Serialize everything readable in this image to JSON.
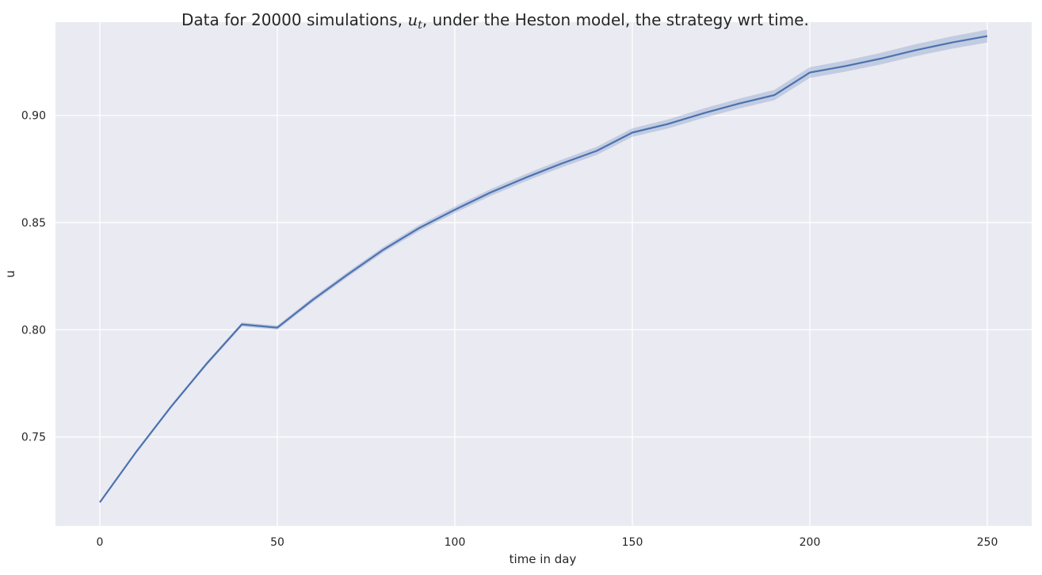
{
  "chart_data": {
    "type": "line",
    "title": {
      "prefix": "Data for 20000 simulations, ",
      "math_base": "u",
      "math_sub": "t",
      "suffix": ", under the Heston model, the strategy wrt time."
    },
    "xlabel": "time in day",
    "ylabel": "u",
    "xlim": [
      -12.5,
      262.5
    ],
    "ylim": [
      0.7085,
      0.9435
    ],
    "xticks": [
      0,
      50,
      100,
      150,
      200,
      250
    ],
    "xtick_labels": [
      "0",
      "50",
      "100",
      "150",
      "200",
      "250"
    ],
    "yticks": [
      0.75,
      0.8,
      0.85,
      0.9
    ],
    "ytick_labels": [
      "0.75",
      "0.80",
      "0.85",
      "0.90"
    ],
    "grid": true,
    "legend": "none",
    "series": [
      {
        "x": [
          0,
          10,
          20,
          30,
          40,
          50,
          60,
          70,
          80,
          90,
          100,
          110,
          120,
          130,
          140,
          150,
          160,
          170,
          180,
          190,
          200,
          210,
          220,
          230,
          240,
          250
        ],
        "y": [
          0.7195,
          0.7425,
          0.764,
          0.784,
          0.8025,
          0.801,
          0.814,
          0.826,
          0.8375,
          0.8475,
          0.856,
          0.864,
          0.871,
          0.8775,
          0.8835,
          0.892,
          0.896,
          0.901,
          0.9055,
          0.9095,
          0.92,
          0.923,
          0.9265,
          0.9305,
          0.934,
          0.937
        ],
        "ci": [
          0.0005,
          0.0006,
          0.0007,
          0.0008,
          0.0009,
          0.001,
          0.0011,
          0.0012,
          0.0013,
          0.0014,
          0.0015,
          0.0016,
          0.0017,
          0.0018,
          0.0019,
          0.002,
          0.0021,
          0.0022,
          0.0023,
          0.0024,
          0.0025,
          0.0026,
          0.0027,
          0.0028,
          0.0029,
          0.003
        ]
      }
    ]
  },
  "colors": {
    "plot_background": "#eaeaf2",
    "grid": "#ffffff",
    "line": "#4c72b0",
    "band": "#4c72b0"
  }
}
